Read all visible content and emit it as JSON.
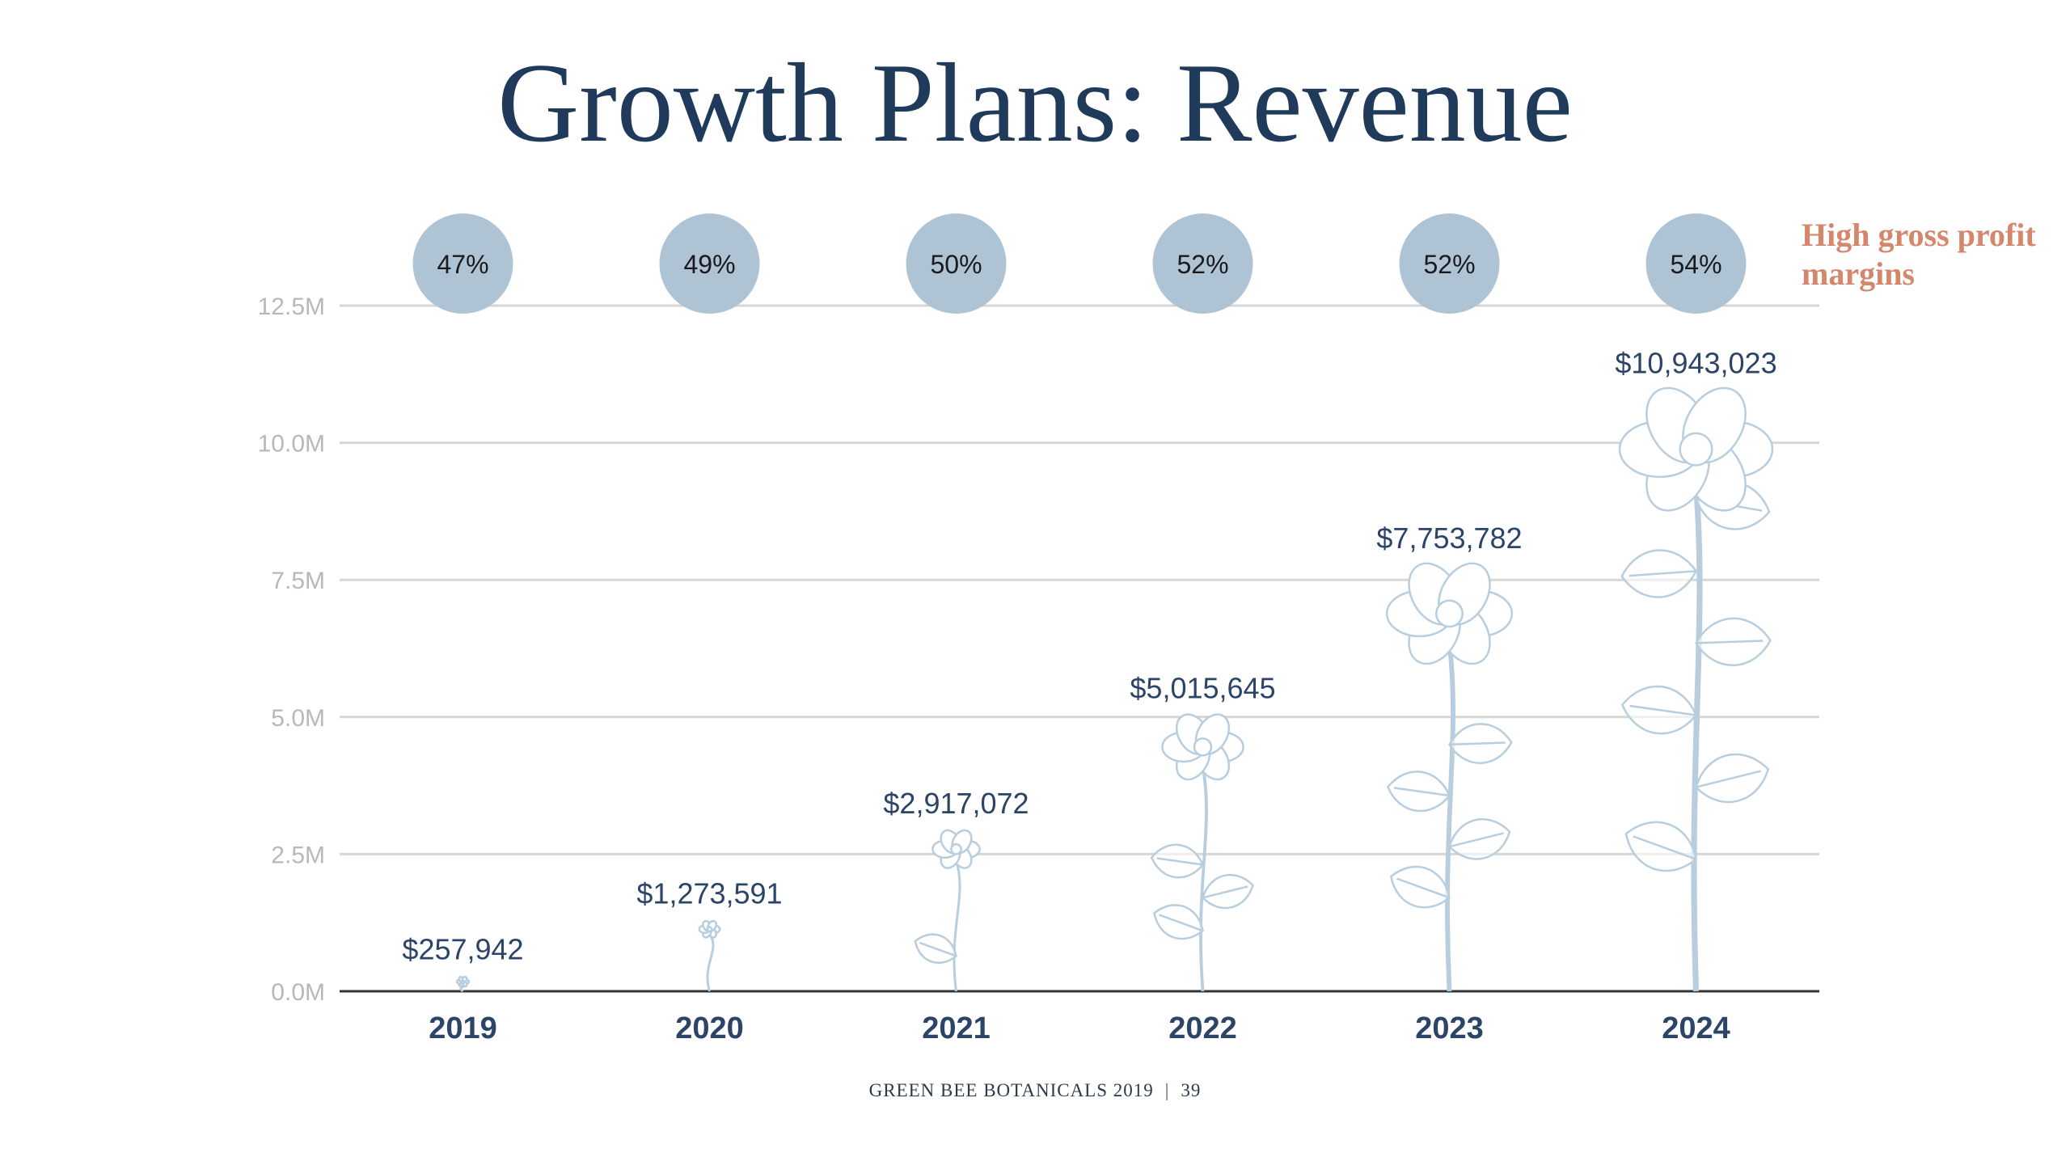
{
  "slide": {
    "title": "Growth Plans: Revenue",
    "note": "High gross profit margins",
    "footer_text": "GREEN BEE BOTANICALS 2019",
    "page_number": "39"
  },
  "colors": {
    "title": "#1f3a5a",
    "label": "#2b4468",
    "margin_bubble": "#aec4d5",
    "note": "#d4876c",
    "grid": "#d6d6d6",
    "axis": "#333333",
    "tick": "#b8b8b8",
    "flower": "#b8cddd"
  },
  "chart_data": {
    "type": "bar",
    "categories": [
      "2019",
      "2020",
      "2021",
      "2022",
      "2023",
      "2024"
    ],
    "series": [
      {
        "values": [
          257942,
          1273591,
          2917072,
          5015645,
          7753782,
          10943023
        ],
        "labels": [
          "$257,942",
          "$1,273,591",
          "$2,917,072",
          "$5,015,645",
          "$7,753,782",
          "$10,943,023"
        ]
      }
    ],
    "margins": [
      "47%",
      "49%",
      "50%",
      "52%",
      "52%",
      "54%"
    ],
    "ylim": [
      0,
      12500000
    ],
    "yticks": [
      {
        "value": 0,
        "label": "0.0M"
      },
      {
        "value": 2500000,
        "label": "2.5M"
      },
      {
        "value": 5000000,
        "label": "5.0M"
      },
      {
        "value": 7500000,
        "label": "7.5M"
      },
      {
        "value": 10000000,
        "label": "10.0M"
      },
      {
        "value": 12500000,
        "label": "12.5M"
      }
    ],
    "grid": true,
    "mark_style": "flower illustrations sized by revenue"
  }
}
